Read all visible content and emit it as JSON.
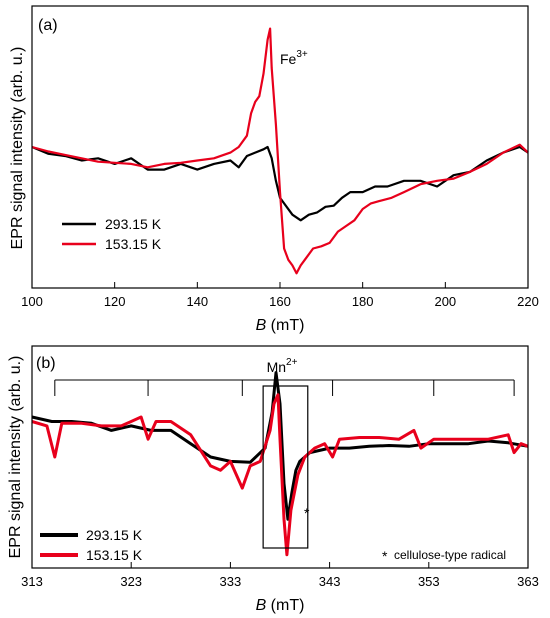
{
  "colors": {
    "black_series": "#000000",
    "red_series": "#e8001c",
    "frame": "#000000"
  },
  "chart_data": [
    {
      "panel": "a",
      "panel_label": "(a)",
      "type": "line",
      "xlabel_italic": "B",
      "xlabel_unit": " (mT)",
      "ylabel": "EPR signal intensity (arb. u.)",
      "xlim": [
        100,
        220
      ],
      "ylim": [
        -1.25,
        1.25
      ],
      "xticks": [
        100,
        120,
        140,
        160,
        180,
        200,
        220
      ],
      "grid": false,
      "legend_position": "bottom-left",
      "annotation": {
        "text": "Fe",
        "sup": "3+"
      },
      "series": [
        {
          "name": "293.15 K",
          "color": "#000000",
          "points": [
            [
              100,
              0.0
            ],
            [
              104,
              -0.06
            ],
            [
              108,
              -0.08
            ],
            [
              112,
              -0.12
            ],
            [
              116,
              -0.1
            ],
            [
              120,
              -0.15
            ],
            [
              124,
              -0.1
            ],
            [
              128,
              -0.2
            ],
            [
              132,
              -0.2
            ],
            [
              136,
              -0.15
            ],
            [
              140,
              -0.2
            ],
            [
              144,
              -0.15
            ],
            [
              148,
              -0.12
            ],
            [
              150,
              -0.18
            ],
            [
              152,
              -0.08
            ],
            [
              154,
              -0.05
            ],
            [
              156,
              -0.02
            ],
            [
              157,
              0.0
            ],
            [
              158,
              -0.1
            ],
            [
              159,
              -0.3
            ],
            [
              160,
              -0.45
            ],
            [
              161,
              -0.5
            ],
            [
              163,
              -0.6
            ],
            [
              165,
              -0.65
            ],
            [
              167,
              -0.6
            ],
            [
              169,
              -0.58
            ],
            [
              171,
              -0.53
            ],
            [
              173,
              -0.52
            ],
            [
              175,
              -0.45
            ],
            [
              177,
              -0.4
            ],
            [
              180,
              -0.4
            ],
            [
              183,
              -0.35
            ],
            [
              186,
              -0.35
            ],
            [
              190,
              -0.3
            ],
            [
              194,
              -0.3
            ],
            [
              198,
              -0.35
            ],
            [
              202,
              -0.25
            ],
            [
              206,
              -0.22
            ],
            [
              210,
              -0.12
            ],
            [
              214,
              -0.05
            ],
            [
              218,
              0.0
            ],
            [
              220,
              -0.05
            ]
          ]
        },
        {
          "name": "153.15 K",
          "color": "#e8001c",
          "points": [
            [
              100,
              0.0
            ],
            [
              104,
              -0.04
            ],
            [
              108,
              -0.07
            ],
            [
              112,
              -0.1
            ],
            [
              116,
              -0.13
            ],
            [
              120,
              -0.14
            ],
            [
              124,
              -0.15
            ],
            [
              128,
              -0.18
            ],
            [
              132,
              -0.15
            ],
            [
              136,
              -0.14
            ],
            [
              140,
              -0.12
            ],
            [
              144,
              -0.1
            ],
            [
              148,
              -0.05
            ],
            [
              150,
              0.0
            ],
            [
              152,
              0.1
            ],
            [
              153,
              0.3
            ],
            [
              154,
              0.4
            ],
            [
              155,
              0.45
            ],
            [
              156,
              0.65
            ],
            [
              157,
              0.95
            ],
            [
              157.6,
              1.05
            ],
            [
              158,
              0.7
            ],
            [
              159,
              0.2
            ],
            [
              160,
              -0.4
            ],
            [
              161,
              -0.9
            ],
            [
              162,
              -1.0
            ],
            [
              163,
              -1.05
            ],
            [
              164,
              -1.12
            ],
            [
              165,
              -1.05
            ],
            [
              166,
              -1.0
            ],
            [
              168,
              -0.9
            ],
            [
              170,
              -0.88
            ],
            [
              172,
              -0.85
            ],
            [
              174,
              -0.75
            ],
            [
              176,
              -0.7
            ],
            [
              178,
              -0.65
            ],
            [
              180,
              -0.55
            ],
            [
              182,
              -0.5
            ],
            [
              184,
              -0.48
            ],
            [
              187,
              -0.45
            ],
            [
              190,
              -0.4
            ],
            [
              194,
              -0.33
            ],
            [
              198,
              -0.3
            ],
            [
              202,
              -0.28
            ],
            [
              206,
              -0.22
            ],
            [
              210,
              -0.15
            ],
            [
              214,
              -0.05
            ],
            [
              218,
              0.02
            ],
            [
              220,
              -0.05
            ]
          ]
        }
      ]
    },
    {
      "panel": "b",
      "panel_label": "(b)",
      "type": "line",
      "xlabel_italic": "B",
      "xlabel_unit": " (mT)",
      "ylabel": "EPR signal intensity (arb. u.)",
      "xlim": [
        313,
        363
      ],
      "ylim": [
        -1.25,
        1.25
      ],
      "xticks": [
        313,
        323,
        333,
        343,
        353,
        363
      ],
      "grid": false,
      "legend_position": "bottom-left",
      "mn_label": {
        "text": "Mn",
        "sup": "2+"
      },
      "mn_lines": [
        315.3,
        324.7,
        334.2,
        343.3,
        353.5,
        361.6
      ],
      "highlight_box_x": [
        336.3,
        340.8
      ],
      "asterisk": "*",
      "footnote": "cellulose-type radical",
      "series": [
        {
          "name": "293.15 K",
          "color": "#000000",
          "points": [
            [
              313,
              0.45
            ],
            [
              315,
              0.4
            ],
            [
              317,
              0.4
            ],
            [
              319,
              0.38
            ],
            [
              321,
              0.3
            ],
            [
              323,
              0.35
            ],
            [
              325,
              0.3
            ],
            [
              327,
              0.3
            ],
            [
              329,
              0.15
            ],
            [
              331,
              0.0
            ],
            [
              333,
              -0.05
            ],
            [
              335,
              -0.06
            ],
            [
              336.5,
              0.1
            ],
            [
              337.2,
              0.5
            ],
            [
              337.6,
              0.95
            ],
            [
              338,
              0.6
            ],
            [
              338.4,
              -0.3
            ],
            [
              338.8,
              -0.7
            ],
            [
              339.2,
              -0.4
            ],
            [
              339.6,
              -0.15
            ],
            [
              340,
              -0.05
            ],
            [
              341,
              0.05
            ],
            [
              343,
              0.1
            ],
            [
              345,
              0.1
            ],
            [
              347,
              0.12
            ],
            [
              349,
              0.13
            ],
            [
              351,
              0.12
            ],
            [
              353,
              0.15
            ],
            [
              355,
              0.15
            ],
            [
              357,
              0.15
            ],
            [
              359,
              0.18
            ],
            [
              361,
              0.16
            ],
            [
              363,
              0.12
            ]
          ]
        },
        {
          "name": "153.15 K",
          "color": "#e8001c",
          "points": [
            [
              313,
              0.4
            ],
            [
              314.5,
              0.35
            ],
            [
              315.3,
              0.0
            ],
            [
              316,
              0.38
            ],
            [
              318,
              0.38
            ],
            [
              320,
              0.35
            ],
            [
              322,
              0.35
            ],
            [
              324,
              0.45
            ],
            [
              324.7,
              0.2
            ],
            [
              325.5,
              0.4
            ],
            [
              327,
              0.4
            ],
            [
              329,
              0.25
            ],
            [
              331,
              -0.1
            ],
            [
              332,
              -0.15
            ],
            [
              333,
              -0.05
            ],
            [
              334.2,
              -0.35
            ],
            [
              335,
              -0.1
            ],
            [
              336,
              -0.05
            ],
            [
              337,
              0.3
            ],
            [
              337.4,
              0.6
            ],
            [
              337.8,
              0.7
            ],
            [
              338,
              0.2
            ],
            [
              338.4,
              -0.7
            ],
            [
              338.7,
              -1.1
            ],
            [
              339.1,
              -0.6
            ],
            [
              339.8,
              -0.2
            ],
            [
              340.5,
              0.0
            ],
            [
              341.5,
              0.1
            ],
            [
              342.5,
              0.15
            ],
            [
              343.3,
              0.0
            ],
            [
              344,
              0.2
            ],
            [
              346,
              0.22
            ],
            [
              348,
              0.22
            ],
            [
              350,
              0.2
            ],
            [
              351.5,
              0.3
            ],
            [
              352.2,
              0.1
            ],
            [
              353.5,
              0.2
            ],
            [
              355,
              0.2
            ],
            [
              357,
              0.2
            ],
            [
              359,
              0.2
            ],
            [
              361,
              0.25
            ],
            [
              361.6,
              0.05
            ],
            [
              362.3,
              0.15
            ],
            [
              363,
              0.12
            ]
          ]
        }
      ]
    }
  ]
}
